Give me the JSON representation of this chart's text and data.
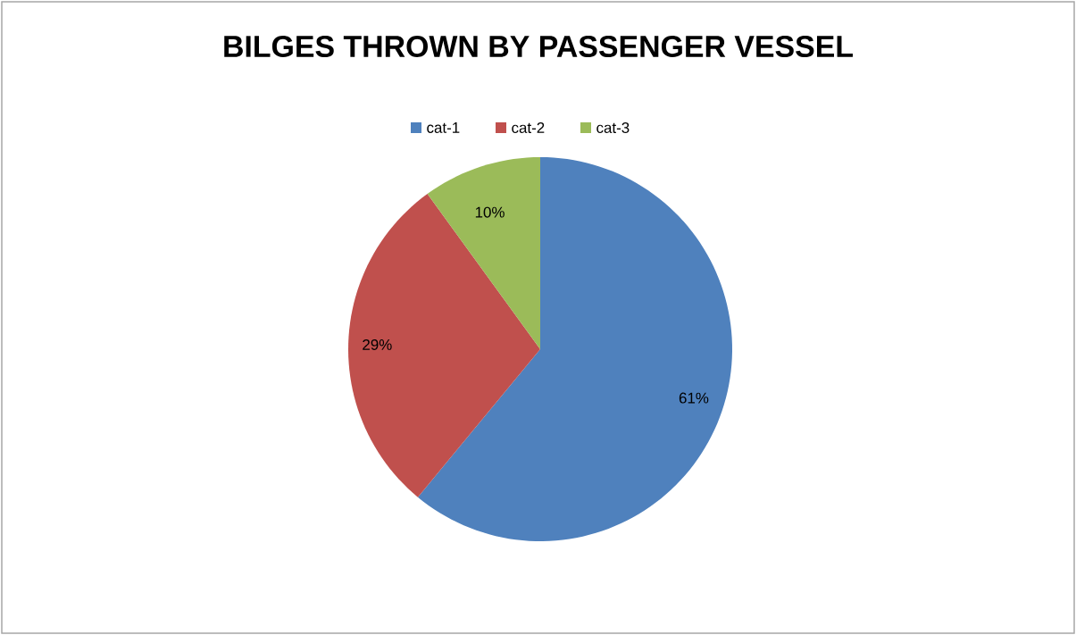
{
  "chart_data": {
    "type": "pie",
    "title": "BILGES THROWN BY PASSENGER VESSEL",
    "categories": [
      "cat-1",
      "cat-2",
      "cat-3"
    ],
    "values": [
      61,
      29,
      10
    ],
    "value_labels": [
      "61%",
      "29%",
      "10%"
    ],
    "colors": [
      "#4f81bd",
      "#c0504d",
      "#9bbb59"
    ],
    "legend": "top"
  }
}
